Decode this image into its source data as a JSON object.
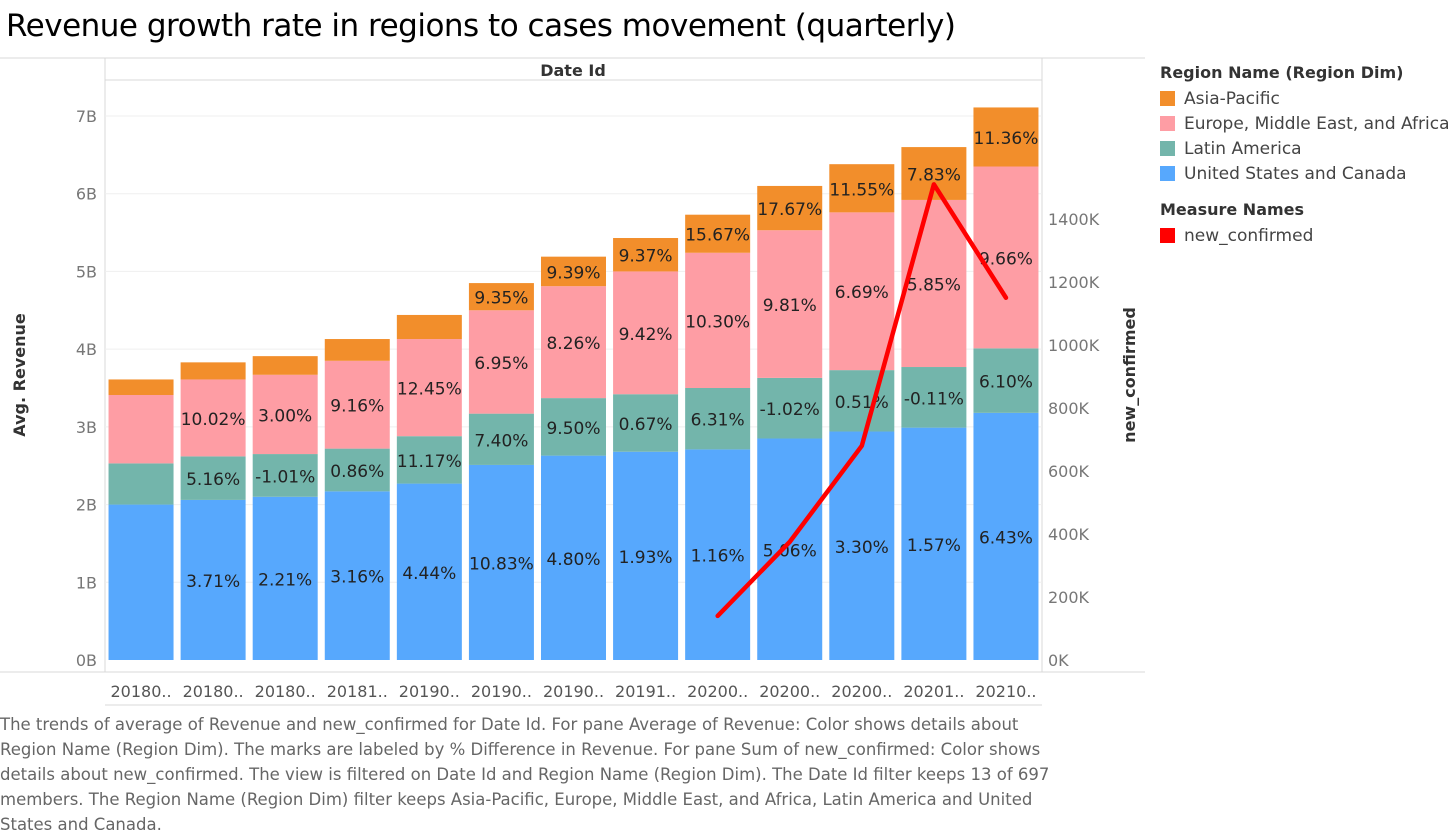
{
  "title": "Revenue growth rate in regions to cases movement (quarterly)",
  "chart_data": {
    "type": "bar",
    "stacked": true,
    "header": "Date Id",
    "categories": [
      "20180..",
      "20180..",
      "20180..",
      "20181..",
      "20190..",
      "20190..",
      "20190..",
      "20191..",
      "20200..",
      "20200..",
      "20200..",
      "20201..",
      "20210.."
    ],
    "ylabel": "Avg. Revenue",
    "ylim": [
      0,
      7.7
    ],
    "y_ticks": [
      0,
      1,
      2,
      3,
      4,
      5,
      6,
      7
    ],
    "y_tick_labels": [
      "0B",
      "1B",
      "2B",
      "3B",
      "4B",
      "5B",
      "6B",
      "7B"
    ],
    "y2label": "new_confirmed",
    "y2lim": [
      0,
      1540000
    ],
    "y2_ticks": [
      0,
      200000,
      400000,
      600000,
      800000,
      1000000,
      1200000,
      1400000
    ],
    "y2_tick_labels": [
      "0K",
      "200K",
      "400K",
      "600K",
      "800K",
      "1000K",
      "1200K",
      "1400K"
    ],
    "series": [
      {
        "name": "United States and Canada",
        "color": "#57a8fd",
        "values": [
          2.0,
          2.06,
          2.1,
          2.17,
          2.27,
          2.51,
          2.63,
          2.68,
          2.71,
          2.85,
          2.94,
          2.99,
          3.18
        ],
        "labels": [
          "",
          "3.71%",
          "2.21%",
          "3.16%",
          "4.44%",
          "10.83%",
          "4.80%",
          "1.93%",
          "1.16%",
          "5.06%",
          "3.30%",
          "1.57%",
          "6.43%"
        ]
      },
      {
        "name": "Latin America",
        "color": "#73b5ab",
        "values": [
          0.53,
          0.56,
          0.55,
          0.55,
          0.61,
          0.66,
          0.74,
          0.74,
          0.79,
          0.78,
          0.79,
          0.78,
          0.83
        ],
        "labels": [
          "",
          "5.16%",
          "-1.01%",
          "0.86%",
          "11.17%",
          "7.40%",
          "9.50%",
          "0.67%",
          "6.31%",
          "-1.02%",
          "0.51%",
          "-0.11%",
          "6.10%"
        ]
      },
      {
        "name": "Europe, Middle East, and Africa",
        "color": "#fe9da4",
        "values": [
          0.88,
          0.99,
          1.02,
          1.13,
          1.25,
          1.33,
          1.44,
          1.58,
          1.74,
          1.9,
          2.03,
          2.15,
          2.34
        ],
        "labels": [
          "",
          "10.02%",
          "3.00%",
          "9.16%",
          "12.45%",
          "6.95%",
          "8.26%",
          "9.42%",
          "10.30%",
          "9.81%",
          "6.69%",
          "5.85%",
          "9.66%"
        ]
      },
      {
        "name": "Asia-Pacific",
        "color": "#f28e2b",
        "values": [
          0.2,
          0.22,
          0.24,
          0.28,
          0.31,
          0.35,
          0.38,
          0.43,
          0.49,
          0.57,
          0.62,
          0.68,
          0.76
        ],
        "labels": [
          "",
          "",
          "",
          "",
          "",
          "9.35%",
          "9.39%",
          "9.37%",
          "15.67%",
          "17.67%",
          "11.55%",
          "7.83%",
          "11.36%"
        ]
      }
    ],
    "line": {
      "name": "new_confirmed",
      "color": "#ff0000",
      "values": [
        null,
        null,
        null,
        null,
        null,
        null,
        null,
        null,
        140000,
        375000,
        680000,
        1510000,
        1150000
      ]
    },
    "grid": true,
    "legend_position": "right"
  },
  "legend": {
    "title1": "Region Name (Region Dim)",
    "title2": "Measure Names"
  },
  "caption": "The trends of average of Revenue and new_confirmed for Date Id.  For pane Average of Revenue:  Color shows details about Region Name (Region Dim).  The marks are labeled by % Difference in Revenue.  For pane Sum of new_confirmed:  Color shows details about new_confirmed. The view is filtered on Date Id and Region Name (Region Dim). The Date Id filter keeps 13 of 697 members. The Region Name (Region Dim) filter keeps Asia-Pacific, Europe, Middle East, and Africa, Latin America and United States and Canada."
}
